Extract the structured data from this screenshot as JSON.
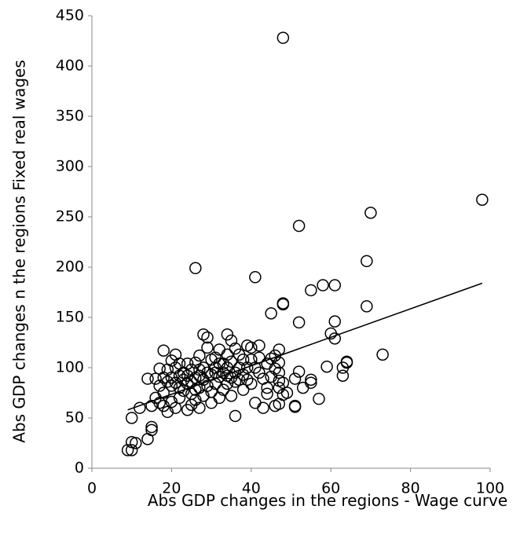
{
  "chart_data": {
    "type": "scatter",
    "x_label": "Abs GDP changes in the regions - Wage curve",
    "y_label": "Abs GDP changes  n the regions Fixed real wages",
    "xlim": [
      0,
      100
    ],
    "xticks": [
      0,
      20,
      40,
      60,
      80,
      100
    ],
    "ylim": [
      0,
      450
    ],
    "yticks": [
      0,
      50,
      100,
      150,
      200,
      250,
      300,
      350,
      400,
      450
    ],
    "marker_color": "#000000",
    "series": [
      {
        "color": "#000000",
        "x": [
          48,
          98,
          70,
          52,
          69,
          26,
          41,
          58,
          61,
          48,
          48,
          55,
          69,
          45,
          61,
          52,
          61,
          60,
          73,
          64,
          64,
          63,
          63,
          59,
          57,
          55,
          55,
          53,
          52,
          51,
          51,
          51,
          49,
          48,
          48,
          47,
          47,
          47,
          47,
          47,
          47,
          46,
          46,
          45,
          45,
          44,
          44,
          43,
          42,
          42,
          41,
          41,
          43,
          40,
          40,
          39,
          39,
          39,
          38,
          38,
          37,
          37,
          36,
          36,
          36,
          35,
          35,
          35,
          35,
          34,
          34,
          34,
          34,
          33,
          33,
          32,
          32,
          32,
          32,
          31,
          31,
          31,
          30,
          30,
          30,
          29,
          29,
          29,
          29,
          28,
          28,
          28,
          28,
          27,
          27,
          27,
          27,
          26,
          26,
          26,
          25,
          25,
          25,
          25,
          24,
          24,
          24,
          23,
          23,
          22,
          22,
          22,
          21,
          21,
          21,
          21,
          20,
          20,
          20,
          19,
          19,
          19,
          18,
          18,
          18,
          18,
          17,
          17,
          17,
          16,
          16,
          15,
          15,
          15,
          14,
          14,
          12,
          11,
          10,
          10,
          9,
          10,
          30,
          33,
          36,
          38,
          42,
          44,
          46,
          27,
          23,
          31,
          37,
          40,
          34,
          26,
          24,
          20,
          22
        ],
        "y": [
          428,
          267,
          254,
          241,
          206,
          199,
          190,
          182,
          182,
          164,
          163,
          177,
          161,
          154,
          146,
          145,
          129,
          134,
          113,
          106,
          105,
          100,
          92,
          101,
          69,
          85,
          88,
          80,
          96,
          89,
          62,
          61,
          75,
          85,
          73,
          118,
          105,
          95,
          87,
          80,
          64,
          62,
          99,
          109,
          91,
          104,
          74,
          89,
          122,
          110,
          100,
          65,
          60,
          120,
          108,
          122,
          100,
          88,
          93,
          78,
          113,
          100,
          119,
          86,
          52,
          127,
          106,
          90,
          72,
          133,
          113,
          100,
          84,
          95,
          78,
          118,
          104,
          91,
          70,
          110,
          95,
          84,
          108,
          93,
          76,
          130,
          120,
          95,
          82,
          133,
          100,
          88,
          72,
          112,
          92,
          80,
          60,
          105,
          90,
          78,
          98,
          86,
          74,
          63,
          104,
          84,
          58,
          88,
          77,
          104,
          92,
          70,
          113,
          100,
          85,
          60,
          107,
          82,
          66,
          98,
          86,
          56,
          117,
          90,
          75,
          62,
          99,
          82,
          65,
          89,
          70,
          62,
          41,
          38,
          89,
          29,
          60,
          25,
          50,
          26,
          18,
          18,
          65,
          104,
          95,
          108,
          95,
          80,
          112,
          98,
          95,
          100,
          88,
          84,
          92,
          68,
          92,
          90,
          80
        ]
      }
    ],
    "trend_line": {
      "x": [
        9,
        98
      ],
      "y": [
        58,
        184
      ]
    }
  }
}
